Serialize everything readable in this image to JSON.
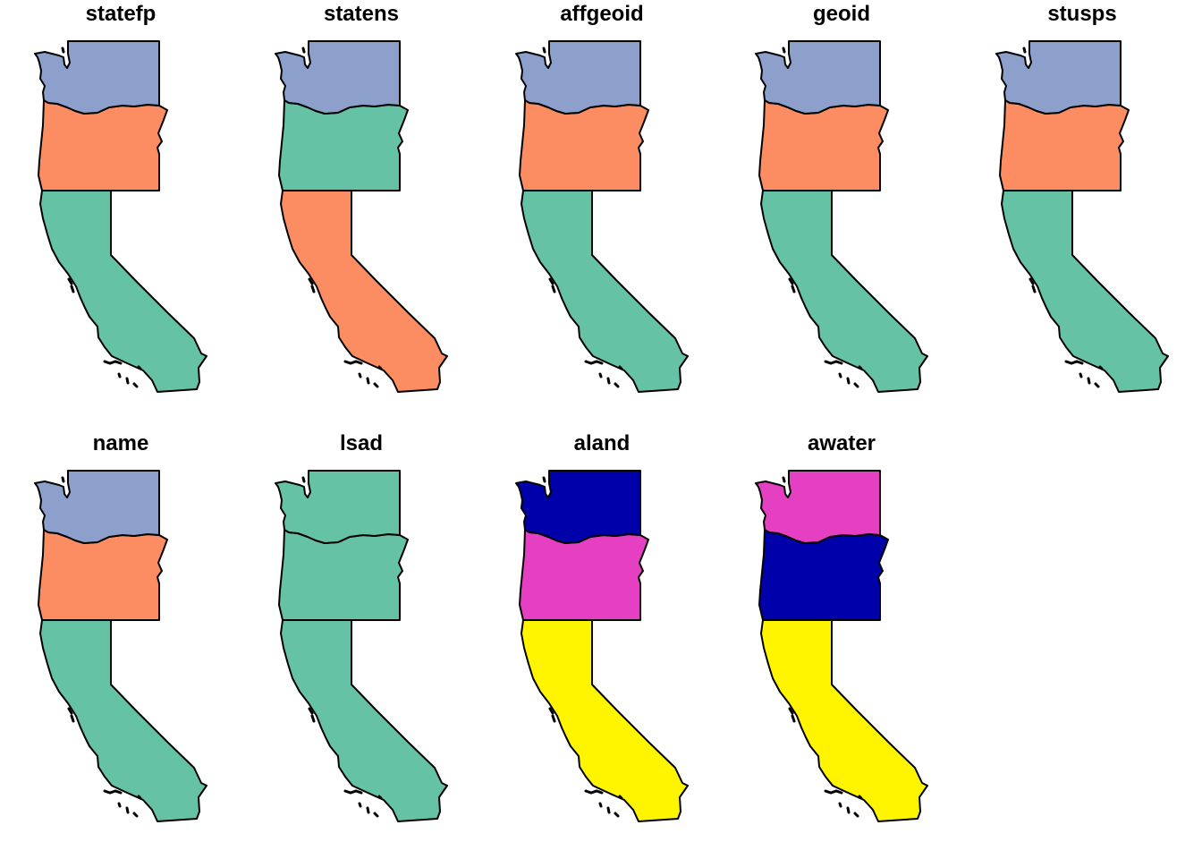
{
  "figure": {
    "panels": [
      {
        "title": "statefp",
        "fills": {
          "washington": "#8DA0CB",
          "oregon": "#FC8D62",
          "california": "#66C2A5"
        }
      },
      {
        "title": "statens",
        "fills": {
          "washington": "#8DA0CB",
          "oregon": "#66C2A5",
          "california": "#FC8D62"
        }
      },
      {
        "title": "affgeoid",
        "fills": {
          "washington": "#8DA0CB",
          "oregon": "#FC8D62",
          "california": "#66C2A5"
        }
      },
      {
        "title": "geoid",
        "fills": {
          "washington": "#8DA0CB",
          "oregon": "#FC8D62",
          "california": "#66C2A5"
        }
      },
      {
        "title": "stusps",
        "fills": {
          "washington": "#8DA0CB",
          "oregon": "#FC8D62",
          "california": "#66C2A5"
        }
      },
      {
        "title": "name",
        "fills": {
          "washington": "#8DA0CB",
          "oregon": "#FC8D62",
          "california": "#66C2A5"
        }
      },
      {
        "title": "lsad",
        "fills": {
          "washington": "#66C2A5",
          "oregon": "#66C2A5",
          "california": "#66C2A5"
        }
      },
      {
        "title": "aland",
        "fills": {
          "washington": "#0000AA",
          "oregon": "#E53FC2",
          "california": "#FFF500"
        }
      },
      {
        "title": "awater",
        "fills": {
          "washington": "#E53FC2",
          "oregon": "#0000AA",
          "california": "#FFF500"
        }
      }
    ]
  }
}
